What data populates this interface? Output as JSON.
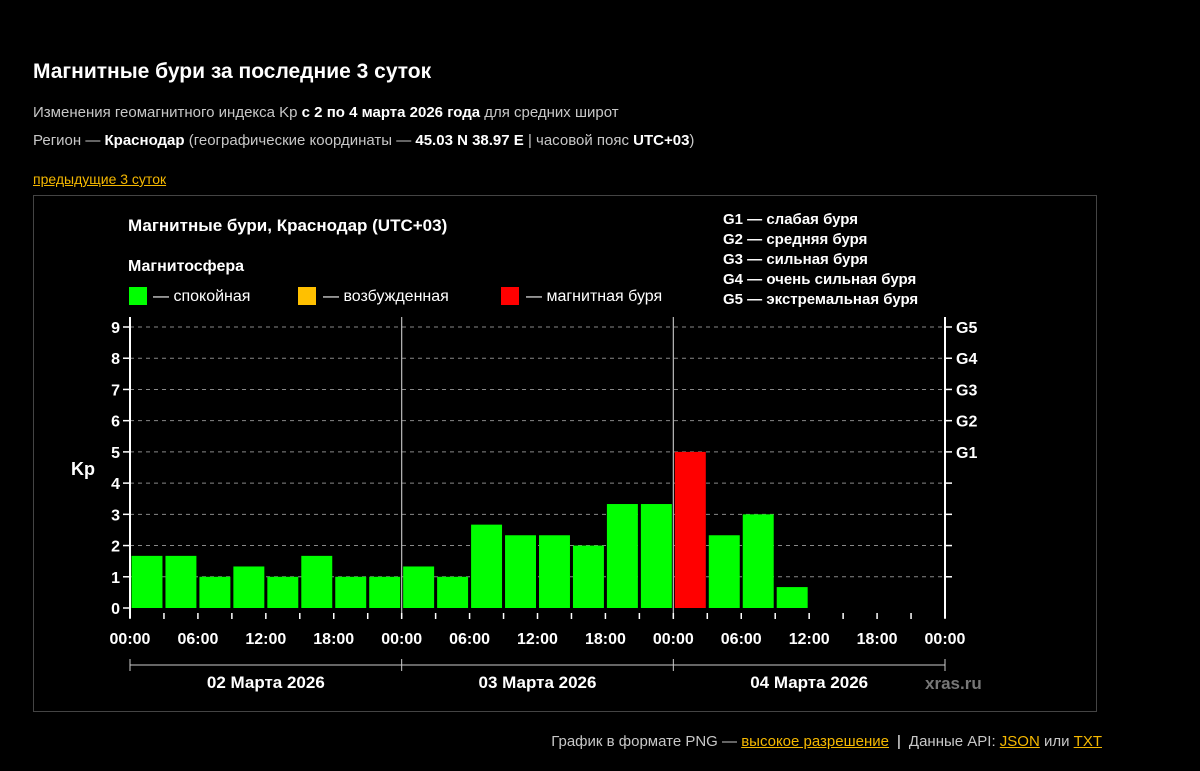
{
  "header": {
    "title": "Магнитные бури за последние 3 суток",
    "line1_pre": "Изменения геомагнитного индекса Kp ",
    "line1_bold": "с 2 по 4 марта 2026 года",
    "line1_post": " для средних широт",
    "line2_pre": "Регион — ",
    "line2_region": "Краснодар",
    "line2_mid": " (географические координаты — ",
    "line2_coords": "45.03 N 38.97 E",
    "line2_tz_pre": " | часовой пояс ",
    "line2_tz": "UTC+03",
    "line2_post": ")",
    "prev_link": "предыдущие 3 суток"
  },
  "chart_data": {
    "type": "bar",
    "title": "Магнитные бури, Краснодар (UTC+03)",
    "legend_title": "Магнитосфера",
    "legend": [
      {
        "label": "— спокойная",
        "color": "#00ff00"
      },
      {
        "label": "— возбужденная",
        "color": "#ffc000"
      },
      {
        "label": "— магнитная буря",
        "color": "#ff0000"
      }
    ],
    "storm_scale": [
      "G1 — слабая буря",
      "G2 — средняя буря",
      "G3 — сильная буря",
      "G4 — очень сильная буря",
      "G5 — экстремальная буря"
    ],
    "ylabel": "Kp",
    "ylim": [
      0,
      9
    ],
    "yticks": [
      0,
      1,
      2,
      3,
      4,
      5,
      6,
      7,
      8,
      9
    ],
    "g_ticks": [
      {
        "kp": 5,
        "label": "G1"
      },
      {
        "kp": 6,
        "label": "G2"
      },
      {
        "kp": 7,
        "label": "G3"
      },
      {
        "kp": 8,
        "label": "G4"
      },
      {
        "kp": 9,
        "label": "G5"
      }
    ],
    "xtick_labels": [
      "00:00",
      "06:00",
      "12:00",
      "18:00",
      "00:00",
      "06:00",
      "12:00",
      "18:00",
      "00:00",
      "06:00",
      "12:00",
      "18:00",
      "00:00"
    ],
    "days": [
      "02 Марта 2026",
      "03 Марта 2026",
      "04 Марта 2026"
    ],
    "intervals_per_day": 8,
    "total_intervals": 24,
    "values": [
      1.67,
      1.67,
      1.0,
      1.33,
      1.0,
      1.67,
      1.0,
      1.0,
      1.33,
      1.0,
      2.67,
      2.33,
      2.33,
      2.0,
      3.33,
      3.33,
      5.0,
      2.33,
      3.0,
      0.67
    ],
    "bar_colors": [
      "#00ff00",
      "#00ff00",
      "#00ff00",
      "#00ff00",
      "#00ff00",
      "#00ff00",
      "#00ff00",
      "#00ff00",
      "#00ff00",
      "#00ff00",
      "#00ff00",
      "#00ff00",
      "#00ff00",
      "#00ff00",
      "#00ff00",
      "#00ff00",
      "#ff0000",
      "#00ff00",
      "#00ff00",
      "#00ff00"
    ],
    "grid": true,
    "watermark": "xras.ru"
  },
  "footer": {
    "text_pre": "График в формате PNG — ",
    "hires_link": "высокое разрешение",
    "sep": "|",
    "api_pre": "Данные API: ",
    "json_link": "JSON",
    "or": " или ",
    "txt_link": "TXT"
  }
}
